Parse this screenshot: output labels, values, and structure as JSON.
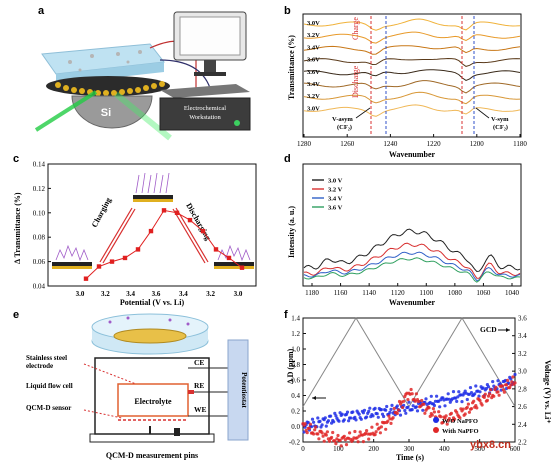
{
  "panels": {
    "a": {
      "label": "a",
      "substrate": "Si",
      "workstation": [
        "Electrochemical",
        "Workstation"
      ]
    },
    "b": {
      "label": "b",
      "ylabel": "Transmittance (%)",
      "xlabel": "Wavenumber",
      "xticks": [
        "1280",
        "1260",
        "1240",
        "1220",
        "1200",
        "1180"
      ],
      "voltage_labels": [
        "3.0V",
        "3.2V",
        "3.4V",
        "3.6V",
        "3.6V",
        "3.4V",
        "3.2V",
        "3.0V"
      ],
      "charge_label": "Charge",
      "discharge_label": "Discharge",
      "vasym": [
        "V-asym",
        "(CF₂)"
      ],
      "vsym": [
        "V-sym",
        "(CF₂)"
      ]
    },
    "c": {
      "label": "c",
      "ylabel": "Δ Transmittance (%)",
      "xlabel": "Potential (V vs. Li)",
      "yticks": [
        "0.04",
        "0.06",
        "0.08",
        "0.10",
        "0.12",
        "0.14"
      ],
      "xticks": [
        "3.0",
        "3.2",
        "3.4",
        "3.6",
        "3.4",
        "3.2",
        "3.0"
      ],
      "charging": "Charging",
      "discharging": "Discharging"
    },
    "d": {
      "label": "d",
      "ylabel": "Intensity (a. u.)",
      "xlabel": "Wavenumber",
      "xticks": [
        "1180",
        "1160",
        "1140",
        "1120",
        "1100",
        "1080",
        "1060",
        "1040"
      ]
    },
    "e": {
      "label": "e",
      "stainless": [
        "Stainless steel",
        "electrode"
      ],
      "flowcell": "Liquid flow cell",
      "sensor": "QCM-D sensor",
      "electrolyte": "Electrolyte",
      "ce": "CE",
      "re": "RE",
      "we": "WE",
      "potentiostat": "Potentiostat",
      "pins": "QCM-D measurement pins"
    },
    "f": {
      "label": "f",
      "ylabel_left": "Δ D (ppm)",
      "ylabel_right": "Voltage (V) vs. Li⁺",
      "xlabel": "Time (s)",
      "yticks_left": [
        "-0.2",
        "0.0",
        "0.2",
        "0.4",
        "0.6",
        "0.8",
        "1.0",
        "1.2",
        "1.4"
      ],
      "yticks_right": [
        "2.2",
        "2.4",
        "2.6",
        "2.8",
        "3.0",
        "3.2",
        "3.4",
        "3.6"
      ],
      "xticks": [
        "0",
        "100",
        "200",
        "300",
        "400",
        "500",
        "600"
      ],
      "gcd": "GCD",
      "legend1": "W/O NaPFO",
      "legend2": "With NaPFO"
    }
  },
  "watermark": "ybx8.cn",
  "chart_data": [
    {
      "type": "line",
      "panel": "c",
      "ylabel": "Δ Transmittance (%)",
      "xlabel": "Potential (V vs. Li)",
      "categories": [
        "3.0",
        "3.1",
        "3.2",
        "3.3",
        "3.4",
        "3.5",
        "3.6",
        "3.5",
        "3.4",
        "3.3",
        "3.2",
        "3.1",
        "3.0"
      ],
      "values": [
        0.046,
        0.056,
        0.06,
        0.063,
        0.07,
        0.085,
        0.102,
        0.1,
        0.094,
        0.085,
        0.07,
        0.063,
        0.055
      ],
      "ylim": [
        0.04,
        0.14
      ]
    },
    {
      "type": "line",
      "panel": "d",
      "xlabel": "Wavenumber",
      "ylabel": "Intensity (a. u.)",
      "xlim": [
        1190,
        1035
      ],
      "series": [
        {
          "name": "3.0 V",
          "color": "#222222"
        },
        {
          "name": "3.2 V",
          "color": "#d83030"
        },
        {
          "name": "3.4 V",
          "color": "#3060c8"
        },
        {
          "name": "3.6 V",
          "color": "#30a060"
        }
      ]
    },
    {
      "type": "scatter",
      "panel": "f",
      "xlabel": "Time (s)",
      "xlim": [
        0,
        600
      ],
      "ylim_left": [
        -0.2,
        1.4
      ],
      "ylim_right": [
        2.2,
        3.6
      ],
      "series": [
        {
          "name": "W/O NaPFO",
          "color": "#1e2ee6",
          "x": [
            0,
            50,
            100,
            150,
            200,
            250,
            300,
            350,
            400,
            450,
            500,
            550,
            600
          ],
          "y": [
            0.0,
            0.05,
            0.12,
            0.14,
            0.18,
            0.2,
            0.24,
            0.3,
            0.34,
            0.4,
            0.46,
            0.52,
            0.6
          ]
        },
        {
          "name": "With NaPFO",
          "color": "#e02828",
          "x": [
            0,
            50,
            100,
            150,
            200,
            250,
            300,
            350,
            400,
            450,
            500,
            550,
            600
          ],
          "y": [
            0.0,
            -0.1,
            -0.18,
            -0.14,
            -0.08,
            0.1,
            0.44,
            0.22,
            0.08,
            0.18,
            0.32,
            0.46,
            0.58
          ]
        },
        {
          "name": "GCD",
          "color": "#888888",
          "x": [
            0,
            150,
            300,
            450,
            600
          ],
          "y": [
            2.6,
            3.6,
            2.6,
            3.6,
            2.6
          ]
        }
      ]
    }
  ]
}
